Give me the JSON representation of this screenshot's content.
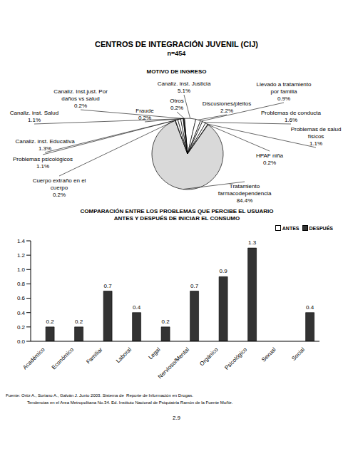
{
  "title": "CENTROS DE INTEGRACIÓN JUVENIL (CIJ)",
  "subtitle": "n=454",
  "chart_data": [
    {
      "type": "pie",
      "title": "MOTIVO DE INGRESO",
      "categories": [
        "Canaliz. inst. Justicia",
        "Discusiones/pleitos",
        "Llevado a tratamiento por familia",
        "Problemas de conducta",
        "Problemas de salud físicos",
        "HPAF niña",
        "Tratamiento farmacodependencia",
        "Cuerpo extraño en el cuerpo",
        "Problemas psicológicos",
        "Canaliz. inst. Educativa",
        "Canaliz. inst. Salud",
        "Canaliz. Inst.just. Por daños vs salud",
        "Fraude",
        "Otros"
      ],
      "values": [
        5.1,
        2.2,
        0.9,
        1.6,
        1.1,
        0.2,
        84.4,
        0.2,
        1.1,
        1.3,
        1.1,
        0.2,
        0.2,
        0.2
      ],
      "value_labels": [
        "5.1%",
        "2.2%",
        "0.9%",
        "1.6%",
        "1.1%",
        "0.2%",
        "84.4%",
        "0.2%",
        "1.1%",
        "1.3%",
        "1.1%",
        "0.2%",
        "0.2%",
        "0.2%"
      ],
      "colors": [
        "#ffffff",
        "#ffffff",
        "#ffffff",
        "#ffffff",
        "#ffffff",
        "#ffffff",
        "#d9d9d9",
        "#ffffff",
        "#ffffff",
        "#ffffff",
        "#ffffff",
        "#ffffff",
        "#ffffff",
        "#ffffff"
      ],
      "data_labels": true
    },
    {
      "type": "bar",
      "title": "COMPARACIÓN ENTRE LOS PROBLEMAS QUE PERCIBE EL USUARIO ANTES Y DESPUÉS DE INICIAR EL CONSUMO",
      "categories": [
        "Académico",
        "Económico",
        "Familiar",
        "Laboral",
        "Legal",
        "Nervioso/Mental",
        "Orgánico",
        "Psicológico",
        "Sexual",
        "Social"
      ],
      "series": [
        {
          "name": "ANTES",
          "color": "#ffffff",
          "values": [
            0,
            0,
            0,
            0,
            0,
            0,
            0,
            0,
            0,
            0
          ]
        },
        {
          "name": "DESPUÉS",
          "color": "#333333",
          "values": [
            0.2,
            0.2,
            0.7,
            0.4,
            0.2,
            0.7,
            0.9,
            1.3,
            0,
            0.4
          ]
        }
      ],
      "ylim": [
        0,
        1.4
      ],
      "yticks": [
        {
          "value": 0,
          "label": "0.0"
        },
        0.2,
        0.4,
        0.6,
        0.8,
        {
          "value": 1,
          "label": "1.0"
        },
        1.2,
        1.4
      ],
      "grid": false,
      "legend": "top right",
      "data_labels": true
    }
  ],
  "source": [
    "Fuente: Ortiz A., Soriano A., Galván J. Junio 2003. Sistema de  Reporte de Información en Drogas.",
    "Tendencias en el Area Metropolitana No.34. Ed. Instituto Nacional de Psiquiatría Ramón de la Fuente Muñiz."
  ],
  "page": "2.9"
}
